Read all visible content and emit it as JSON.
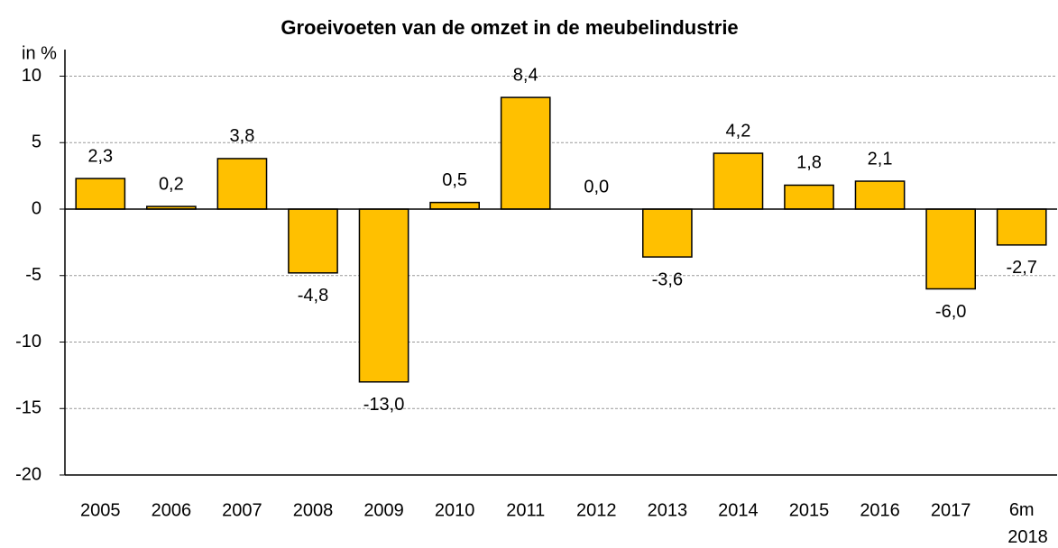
{
  "chart_data": {
    "type": "bar",
    "title": "Groeivoeten van de omzet in de meubelindustrie",
    "y_label": "in %",
    "categories": [
      "2005",
      "2006",
      "2007",
      "2008",
      "2009",
      "2010",
      "2011",
      "2012",
      "2013",
      "2014",
      "2015",
      "2016",
      "2017",
      "6m 2018"
    ],
    "values": [
      2.3,
      0.2,
      3.8,
      -4.8,
      -13.0,
      0.5,
      8.4,
      0.0,
      -3.6,
      4.2,
      1.8,
      2.1,
      -6.0,
      -2.7
    ],
    "value_labels": [
      "2,3",
      "0,2",
      "3,8",
      "-4,8",
      "-13,0",
      "0,5",
      "8,4",
      "0,0",
      "-3,6",
      "4,2",
      "1,8",
      "2,1",
      "-6,0",
      "-2,7"
    ],
    "color": "#ffc000",
    "ylim": [
      -20,
      12
    ],
    "yticks": [
      -20,
      -15,
      -10,
      -5,
      0,
      5,
      10
    ],
    "grid": true
  }
}
